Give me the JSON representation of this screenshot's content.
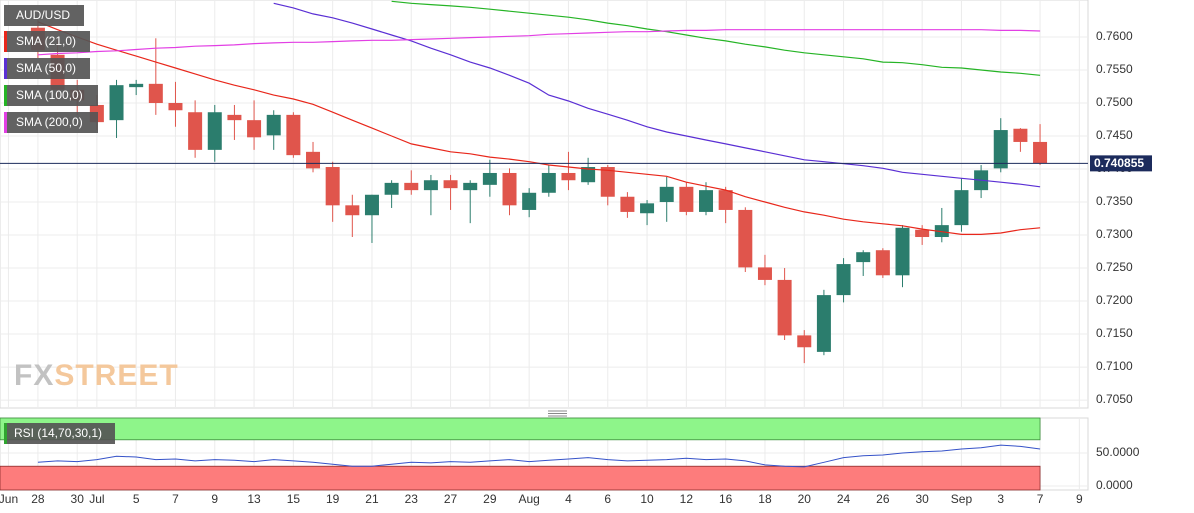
{
  "chart_data": [
    {
      "type": "candlestick",
      "symbol": "AUD/USD",
      "xlim": [
        -1.93,
        53.44
      ],
      "ylim": [
        0.7038,
        0.7656
      ],
      "yticks": [
        {
          "value": 0.76,
          "label": "0.7600"
        },
        {
          "value": 0.755,
          "label": "0.7550"
        },
        {
          "value": 0.75,
          "label": "0.7500"
        },
        {
          "value": 0.745,
          "label": "0.7450"
        },
        {
          "value": 0.74,
          "label": "0.7400"
        },
        {
          "value": 0.735,
          "label": "0.7350"
        },
        {
          "value": 0.73,
          "label": "0.7300"
        },
        {
          "value": 0.725,
          "label": "0.7250"
        },
        {
          "value": 0.72,
          "label": "0.7200"
        },
        {
          "value": 0.715,
          "label": "0.7150"
        },
        {
          "value": 0.71,
          "label": "0.7100"
        },
        {
          "value": 0.705,
          "label": "0.7050"
        }
      ],
      "x_labels": [
        {
          "value": -1.5,
          "label": "Jun"
        },
        {
          "value": 0,
          "label": "28"
        },
        {
          "value": 2,
          "label": "30"
        },
        {
          "value": 3,
          "label": "Jul"
        },
        {
          "value": 5,
          "label": "5"
        },
        {
          "value": 7,
          "label": "7"
        },
        {
          "value": 9,
          "label": "9"
        },
        {
          "value": 11,
          "label": "13"
        },
        {
          "value": 13,
          "label": "15"
        },
        {
          "value": 15,
          "label": "19"
        },
        {
          "value": 17,
          "label": "21"
        },
        {
          "value": 19,
          "label": "23"
        },
        {
          "value": 21,
          "label": "27"
        },
        {
          "value": 23,
          "label": "29"
        },
        {
          "value": 25,
          "label": "Aug"
        },
        {
          "value": 27,
          "label": "4"
        },
        {
          "value": 29,
          "label": "6"
        },
        {
          "value": 31,
          "label": "10"
        },
        {
          "value": 33,
          "label": "12"
        },
        {
          "value": 35,
          "label": "16"
        },
        {
          "value": 37,
          "label": "18"
        },
        {
          "value": 39,
          "label": "20"
        },
        {
          "value": 41,
          "label": "24"
        },
        {
          "value": 43,
          "label": "26"
        },
        {
          "value": 45,
          "label": "30"
        },
        {
          "value": 47,
          "label": "Sep"
        },
        {
          "value": 49,
          "label": "3"
        },
        {
          "value": 51,
          "label": "7"
        },
        {
          "value": 53,
          "label": "9"
        }
      ],
      "grid": true,
      "up_color": "#2b7d6d",
      "down_color": "#e0554c",
      "open": [
        0.7614,
        0.7573,
        0.752,
        0.7497,
        0.7474,
        0.7524,
        0.7529,
        0.75,
        0.7486,
        0.7429,
        0.7482,
        0.7474,
        0.7451,
        0.7482,
        0.7426,
        0.7403,
        0.7345,
        0.733,
        0.7361,
        0.7379,
        0.7368,
        0.7383,
        0.7368,
        0.7376,
        0.7394,
        0.7338,
        0.7364,
        0.7394,
        0.738,
        0.7403,
        0.7358,
        0.7333,
        0.735,
        0.7373,
        0.7335,
        0.7368,
        0.7338,
        0.7251,
        0.7232,
        0.7148,
        0.7123,
        0.7209,
        0.7259,
        0.7277,
        0.7239,
        0.7308,
        0.7297,
        0.7315,
        0.7368,
        0.7401,
        0.7461,
        0.7441
      ],
      "high": [
        0.7626,
        0.7595,
        0.7535,
        0.7512,
        0.7535,
        0.7535,
        0.7598,
        0.7532,
        0.7504,
        0.7497,
        0.7497,
        0.7504,
        0.7489,
        0.7486,
        0.7441,
        0.7411,
        0.7361,
        0.7361,
        0.7383,
        0.7398,
        0.7391,
        0.7391,
        0.7383,
        0.7414,
        0.7401,
        0.7371,
        0.7406,
        0.7426,
        0.7417,
        0.7406,
        0.7365,
        0.7353,
        0.7388,
        0.738,
        0.738,
        0.7373,
        0.7342,
        0.727,
        0.725,
        0.7156,
        0.7217,
        0.7265,
        0.7277,
        0.728,
        0.7315,
        0.7315,
        0.7341,
        0.7386,
        0.7406,
        0.7477,
        0.7462,
        0.7468
      ],
      "low": [
        0.7568,
        0.7504,
        0.7482,
        0.7459,
        0.7447,
        0.7512,
        0.7482,
        0.7464,
        0.7417,
        0.7411,
        0.7444,
        0.7429,
        0.7429,
        0.7417,
        0.7395,
        0.732,
        0.7297,
        0.7288,
        0.7341,
        0.7361,
        0.733,
        0.7338,
        0.7318,
        0.7358,
        0.733,
        0.7327,
        0.7358,
        0.7368,
        0.7376,
        0.7345,
        0.7326,
        0.7315,
        0.732,
        0.733,
        0.733,
        0.7318,
        0.7244,
        0.7224,
        0.7141,
        0.7106,
        0.7118,
        0.7198,
        0.7238,
        0.7235,
        0.7221,
        0.7285,
        0.7289,
        0.7305,
        0.7356,
        0.7395,
        0.7426,
        0.7406
      ],
      "close": [
        0.758,
        0.752,
        0.7504,
        0.7471,
        0.7527,
        0.7529,
        0.75,
        0.7489,
        0.7429,
        0.7486,
        0.7474,
        0.7448,
        0.7482,
        0.7421,
        0.7401,
        0.7345,
        0.733,
        0.7361,
        0.7379,
        0.7368,
        0.7383,
        0.7371,
        0.7379,
        0.7394,
        0.7345,
        0.7364,
        0.7394,
        0.7383,
        0.7403,
        0.7358,
        0.7335,
        0.7348,
        0.7373,
        0.7335,
        0.7368,
        0.7338,
        0.7251,
        0.7232,
        0.7148,
        0.713,
        0.7209,
        0.7256,
        0.7274,
        0.7239,
        0.7311,
        0.7297,
        0.7315,
        0.7368,
        0.7398,
        0.7459,
        0.7441,
        0.7409
      ],
      "overlays": [
        {
          "name": "SMA (21,0)",
          "color": "#e8271b",
          "values": [
            0.7623,
            0.7611,
            0.76,
            0.7589,
            0.758,
            0.7571,
            0.7562,
            0.7553,
            0.7544,
            0.7535,
            0.7527,
            0.752,
            0.7512,
            0.7506,
            0.7498,
            0.7486,
            0.7474,
            0.7462,
            0.745,
            0.7438,
            0.7432,
            0.7426,
            0.7423,
            0.7418,
            0.7415,
            0.7411,
            0.7406,
            0.7403,
            0.74,
            0.7398,
            0.7395,
            0.7392,
            0.7389,
            0.738,
            0.7374,
            0.7368,
            0.7358,
            0.735,
            0.7342,
            0.7335,
            0.733,
            0.7324,
            0.732,
            0.7317,
            0.7314,
            0.7309,
            0.7305,
            0.7301,
            0.7301,
            0.7303,
            0.7308,
            0.7311
          ]
        },
        {
          "name": "SMA (50,0)",
          "color": "#5a2fd4",
          "values": [
            null,
            null,
            null,
            null,
            null,
            null,
            null,
            null,
            null,
            null,
            null,
            null,
            0.7651,
            0.7644,
            0.7635,
            0.7629,
            0.7621,
            0.7612,
            0.7603,
            0.7594,
            0.7583,
            0.7573,
            0.7562,
            0.7553,
            0.7542,
            0.753,
            0.7512,
            0.7503,
            0.7492,
            0.7483,
            0.7474,
            0.7464,
            0.7456,
            0.745,
            0.7444,
            0.7438,
            0.7432,
            0.7426,
            0.742,
            0.7414,
            0.7411,
            0.7408,
            0.7405,
            0.7401,
            0.7395,
            0.7392,
            0.7389,
            0.7386,
            0.7383,
            0.738,
            0.7377,
            0.7373
          ]
        },
        {
          "name": "SMA (100,0)",
          "color": "#25b425",
          "values": [
            null,
            null,
            null,
            null,
            null,
            null,
            null,
            null,
            null,
            null,
            null,
            null,
            null,
            null,
            null,
            null,
            null,
            null,
            0.7654,
            0.7651,
            0.7649,
            0.7647,
            0.7645,
            0.7642,
            0.7639,
            0.7636,
            0.7633,
            0.763,
            0.7626,
            0.7621,
            0.7617,
            0.7612,
            0.7608,
            0.7603,
            0.7598,
            0.7594,
            0.7589,
            0.7585,
            0.758,
            0.7576,
            0.7573,
            0.757,
            0.7567,
            0.7562,
            0.7561,
            0.7558,
            0.7554,
            0.7553,
            0.755,
            0.7547,
            0.7545,
            0.7542
          ]
        },
        {
          "name": "SMA (200,0)",
          "color": "#e23fe4",
          "values": [
            0.7573,
            0.7575,
            0.7576,
            0.7578,
            0.7579,
            0.7581,
            0.7583,
            0.7584,
            0.7586,
            0.7587,
            0.7588,
            0.759,
            0.7591,
            0.7592,
            0.7592,
            0.7593,
            0.7594,
            0.7595,
            0.7595,
            0.7596,
            0.7597,
            0.7598,
            0.7599,
            0.76,
            0.7601,
            0.7602,
            0.7604,
            0.7605,
            0.7606,
            0.7607,
            0.7608,
            0.7608,
            0.7609,
            0.761,
            0.761,
            0.7611,
            0.7611,
            0.7611,
            0.7611,
            0.7611,
            0.7611,
            0.7611,
            0.7611,
            0.7611,
            0.7611,
            0.7611,
            0.7611,
            0.7611,
            0.7611,
            0.761,
            0.761,
            0.7609
          ]
        }
      ],
      "last_price": 0.740855,
      "last_price_color": "#1c2b5c"
    },
    {
      "type": "line",
      "name": "RSI (14,70,30,1)",
      "color": "#3552c8",
      "xlim": [
        -1.93,
        53.44
      ],
      "ylim": [
        -6,
        103
      ],
      "yticks": [
        {
          "value": 50,
          "label": "50.0000"
        },
        {
          "value": 0,
          "label": "0.0000"
        }
      ],
      "overbought": 70,
      "oversold": 30,
      "overbought_color": "#8ef58a",
      "oversold_color": "#fd7c7c",
      "values": [
        36,
        38,
        37,
        40,
        45,
        44,
        40,
        41,
        38,
        40,
        39,
        37,
        40,
        38,
        36,
        33,
        30,
        30,
        33,
        36,
        35,
        37,
        36,
        38,
        40,
        37,
        39,
        41,
        43,
        40,
        38,
        39,
        40,
        42,
        40,
        41,
        38,
        32,
        30,
        29,
        36,
        43,
        46,
        47,
        50,
        52,
        53,
        56,
        58,
        62,
        60,
        56
      ]
    }
  ],
  "watermark": [
    "FX",
    "STREET"
  ]
}
